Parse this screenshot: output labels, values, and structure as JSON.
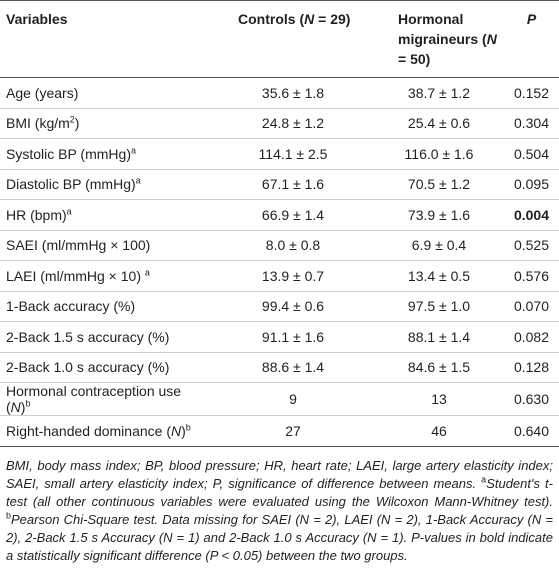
{
  "table": {
    "header": {
      "variables": "Variables",
      "controls": [
        "Controls (",
        "N",
        " = 29)"
      ],
      "migraineurs": [
        "Hormonal migraineurs (",
        "N",
        " = 50)"
      ],
      "p": "P"
    },
    "rows": [
      {
        "label": [
          "Age (years)"
        ],
        "controls": "35.6 ± 1.8",
        "migraineurs": "38.7 ± 1.2",
        "p": "0.152"
      },
      {
        "label": [
          "BMI (kg/m",
          "2",
          ")"
        ],
        "controls": "24.8 ± 1.2",
        "migraineurs": "25.4 ± 0.6",
        "p": "0.304"
      },
      {
        "label": [
          "Systolic BP (mmHg)",
          "a"
        ],
        "controls": "114.1 ± 2.5",
        "migraineurs": "116.0 ± 1.6",
        "p": "0.504"
      },
      {
        "label": [
          "Diastolic BP (mmHg)",
          "a"
        ],
        "controls": "67.1 ± 1.6",
        "migraineurs": "70.5 ± 1.2",
        "p": "0.095"
      },
      {
        "label": [
          "HR (bpm)",
          "a"
        ],
        "controls": "66.9 ± 1.4",
        "migraineurs": "73.9 ± 1.6",
        "p": "0.004"
      },
      {
        "label": [
          "SAEI (ml/mmHg × 100)"
        ],
        "controls": "8.0 ± 0.8",
        "migraineurs": "6.9 ± 0.4",
        "p": "0.525"
      },
      {
        "label": [
          "LAEI (ml/mmHg × 10) ",
          "a"
        ],
        "controls": "13.9 ± 0.7",
        "migraineurs": "13.4 ± 0.5",
        "p": "0.576"
      },
      {
        "label": [
          "1-Back accuracy (%)"
        ],
        "controls": "99.4 ± 0.6",
        "migraineurs": "97.5 ± 1.0",
        "p": "0.070"
      },
      {
        "label": [
          "2-Back 1.5 s accuracy (%)"
        ],
        "controls": "91.1 ± 1.6",
        "migraineurs": "88.1 ± 1.4",
        "p": "0.082"
      },
      {
        "label": [
          "2-Back 1.0 s accuracy (%)"
        ],
        "controls": "88.6 ± 1.4",
        "migraineurs": "84.6 ± 1.5",
        "p": "0.128"
      },
      {
        "label": [
          "Hormonal contraception use (",
          "N",
          ")",
          "b"
        ],
        "controls": "9",
        "migraineurs": "13",
        "p": "0.630"
      },
      {
        "label": [
          "Right-handed dominance (",
          "N",
          ")",
          "b"
        ],
        "controls": "27",
        "migraineurs": "46",
        "p": "0.640"
      }
    ],
    "footnote": [
      "BMI, body mass index; BP, blood pressure; HR, heart rate; LAEI, large artery elasticity index; SAEI, small artery elasticity index; P, significance of difference between means. ",
      "a",
      "Student's t-test (all other continuous variables were evaluated using the Wilcoxon Mann-Whitney test). ",
      "b",
      "Pearson Chi-Square test. Data missing for SAEI (N = 2), LAEI (N = 2), 1-Back Accuracy (N = 2), 2-Back 1.5 s Accuracy (N = 1) and 2-Back 1.0 s Accuracy (N = 1). P-values in bold indicate a statistically significant difference (P < 0.05) between the two groups."
    ]
  }
}
